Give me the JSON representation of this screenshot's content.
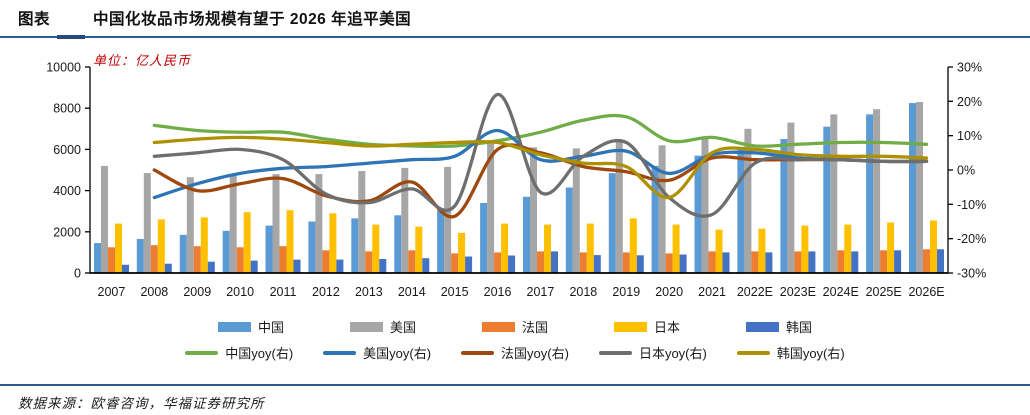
{
  "header": {
    "tag": "图表",
    "title": "中国化妆品市场规模有望于 2026 年追平美国"
  },
  "footer": {
    "source": "数据来源：欧睿咨询，华福证券研究所"
  },
  "accent_colors": {
    "rule_navy": "#2c5a90",
    "unit_red": "#c00000"
  },
  "chart_data": {
    "type": "bar+line combo (bars on left axis, yoy lines on right axis)",
    "title": "中国化妆品市场规模有望于 2026 年追平美国",
    "unit": "单位：亿人民币",
    "grid": false,
    "legend_position": "bottom",
    "categories": [
      "2007",
      "2008",
      "2009",
      "2010",
      "2011",
      "2012",
      "2013",
      "2014",
      "2015",
      "2016",
      "2017",
      "2018",
      "2019",
      "2020",
      "2021",
      "2022E",
      "2023E",
      "2024E",
      "2025E",
      "2026E"
    ],
    "left_axis": {
      "range": [
        0,
        10000
      ],
      "ticks": [
        0,
        2000,
        4000,
        6000,
        8000,
        10000
      ],
      "tick_labels": [
        "0",
        "2000",
        "4000",
        "6000",
        "8000",
        "10000"
      ]
    },
    "right_axis": {
      "range_pct": [
        -30,
        30
      ],
      "ticks": [
        30,
        20,
        10,
        0,
        -10,
        -20,
        -30
      ],
      "tick_labels": [
        "30%",
        "20%",
        "10%",
        "0%",
        "-10%",
        "-20%",
        "-30%"
      ]
    },
    "bar_series": [
      {
        "id": "china",
        "name": "中国",
        "color": "#5B9BD5",
        "values": [
          1450,
          1650,
          1850,
          2050,
          2300,
          2500,
          2650,
          2800,
          3050,
          3400,
          3700,
          4150,
          4850,
          5200,
          5700,
          6000,
          6500,
          7100,
          7700,
          8250
        ]
      },
      {
        "id": "us",
        "name": "美国",
        "color": "#A6A6A6",
        "values": [
          5200,
          4850,
          4650,
          4800,
          4800,
          4800,
          4950,
          5100,
          5150,
          6300,
          6100,
          6050,
          6450,
          6200,
          6550,
          7000,
          7300,
          7700,
          7950,
          8300
        ]
      },
      {
        "id": "france",
        "name": "法国",
        "color": "#ED7D31",
        "values": [
          1250,
          1350,
          1300,
          1250,
          1300,
          1100,
          1050,
          1100,
          950,
          1000,
          1050,
          1000,
          1000,
          950,
          1050,
          1050,
          1050,
          1100,
          1100,
          1150
        ]
      },
      {
        "id": "japan",
        "name": "日本",
        "color": "#FFC000",
        "values": [
          2400,
          2600,
          2700,
          2950,
          3050,
          2900,
          2350,
          2250,
          1950,
          2400,
          2350,
          2400,
          2650,
          2350,
          2100,
          2150,
          2300,
          2350,
          2450,
          2550
        ]
      },
      {
        "id": "korea",
        "name": "韩国",
        "color": "#4472C4",
        "values": [
          400,
          450,
          550,
          600,
          650,
          650,
          680,
          720,
          800,
          850,
          1050,
          870,
          860,
          900,
          1000,
          1000,
          1050,
          1050,
          1100,
          1150
        ]
      }
    ],
    "line_series": [
      {
        "id": "china-yoy",
        "name": "中国yoy(右)",
        "color": "#70AD47",
        "values": [
          null,
          13,
          11.5,
          11,
          11,
          9,
          7.5,
          7,
          7,
          8.5,
          11,
          14.5,
          15.5,
          8.5,
          9.5,
          7,
          7.5,
          8,
          8,
          7.5
        ]
      },
      {
        "id": "us-yoy",
        "name": "美国yoy(右)",
        "color": "#2E75B6",
        "values": [
          null,
          -8,
          -4,
          -1,
          0.5,
          1,
          2,
          3,
          4,
          11.5,
          3,
          4,
          5.5,
          -1,
          4.5,
          5,
          3.5,
          3,
          2.5,
          2.5
        ]
      },
      {
        "id": "france-yoy",
        "name": "法国yoy(右)",
        "color": "#9E480E",
        "values": [
          null,
          0,
          -6,
          -4,
          -2.5,
          -7.5,
          -9,
          -3.5,
          -13.5,
          6,
          5,
          1,
          -0.5,
          -3,
          3.5,
          3,
          3,
          3,
          2.5,
          2.5
        ]
      },
      {
        "id": "japan-yoy",
        "name": "日本yoy(右)",
        "color": "#6E6E6E",
        "values": [
          null,
          4,
          5,
          6,
          3,
          -7,
          -9.5,
          -5.5,
          -10.5,
          22,
          -6.5,
          4,
          8,
          -8,
          -13,
          2,
          3,
          3,
          2.5,
          2.5
        ]
      },
      {
        "id": "korea-yoy",
        "name": "韩国yoy(右)",
        "color": "#AD9100",
        "values": [
          null,
          8,
          9,
          9.5,
          9,
          8,
          7,
          7.5,
          8,
          8,
          4.5,
          2,
          1,
          -8,
          5,
          6,
          4.5,
          4,
          4,
          3.5
        ]
      }
    ]
  }
}
